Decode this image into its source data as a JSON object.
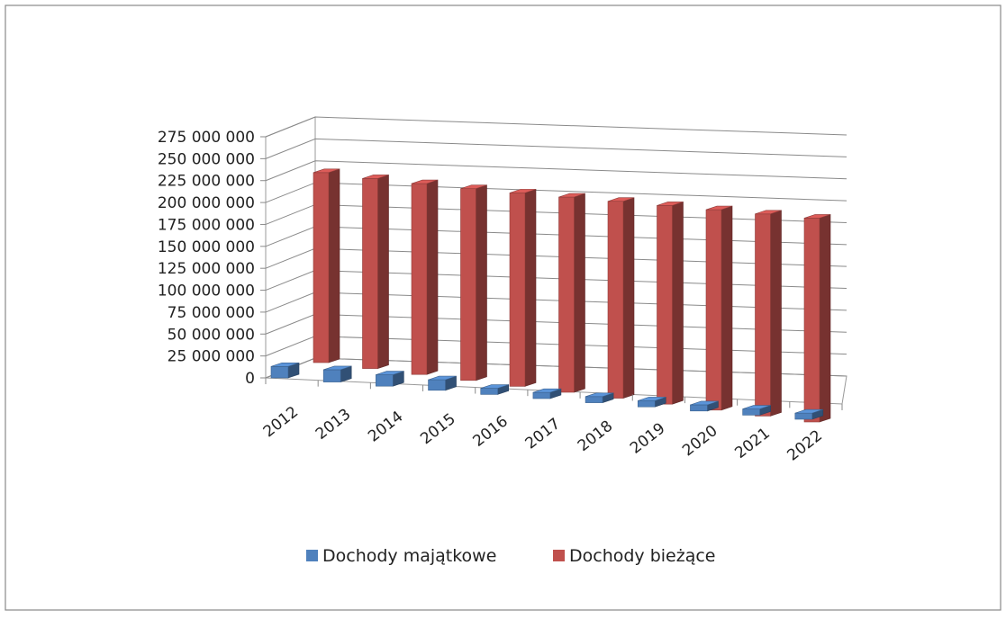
{
  "chart_data": {
    "type": "bar",
    "style": "3d-clustered-column",
    "title": "",
    "xlabel": "",
    "ylabel": "",
    "categories": [
      "2012",
      "2013",
      "2014",
      "2015",
      "2016",
      "2017",
      "2018",
      "2019",
      "2020",
      "2021",
      "2022"
    ],
    "y_tick_labels": [
      "0",
      "25 000 000",
      "50 000 000",
      "75 000 000",
      "100 000 000",
      "125 000 000",
      "150 000 000",
      "175 000 000",
      "200 000 000",
      "225 000 000",
      "250 000 000",
      "275 000 000"
    ],
    "ylim": [
      0,
      275000000
    ],
    "grid": true,
    "legend_position": "bottom",
    "series": [
      {
        "name": "Dochody majątkowe",
        "color": "#4F81BD",
        "values": [
          13000000,
          14000000,
          13000000,
          12000000,
          7000000,
          7000000,
          7000000,
          7000000,
          7000000,
          7000000,
          7000000
        ]
      },
      {
        "name": "Dochody bieżące",
        "color": "#C0504D",
        "values": [
          220000000,
          220000000,
          221000000,
          222000000,
          224000000,
          226000000,
          228000000,
          230000000,
          232000000,
          234000000,
          236000000
        ]
      }
    ]
  }
}
